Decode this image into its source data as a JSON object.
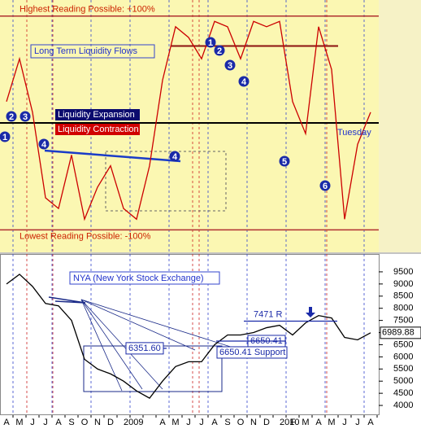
{
  "chart_data": [
    {
      "type": "line",
      "title": "Long Term Liquidity Flows",
      "series": [
        {
          "name": "Long Term Liquidity Flows",
          "color": "#cc0000",
          "values": [
            20,
            60,
            10,
            -70,
            -80,
            -30,
            -90,
            -60,
            -40,
            -80,
            -90,
            -40,
            40,
            90,
            80,
            60,
            95,
            90,
            60,
            95,
            90,
            95,
            20,
            -10,
            90,
            50,
            -90,
            -20,
            10
          ]
        }
      ],
      "ylim": [
        -121,
        115
      ],
      "reference_lines": [
        {
          "value": 100,
          "label": "Highest Reading Possible: +100%"
        },
        {
          "value": -100,
          "label": "Lowest Reading Possible: -100%"
        }
      ],
      "levels": [
        0,
        72
      ],
      "legend": [
        "Liquidity Expansion",
        "Liquidity Contraction"
      ],
      "annotation": "Tuesday",
      "markers": [
        "1",
        "2",
        "3",
        "4",
        "4",
        "1",
        "2",
        "3",
        "4",
        "5",
        "6"
      ]
    },
    {
      "type": "line",
      "title": "NYA (New York Stock Exchange)",
      "categories": [
        "A",
        "M",
        "J",
        "J",
        "A",
        "S",
        "O",
        "N",
        "D",
        "2009",
        null,
        null,
        "A",
        "M",
        "J",
        "J",
        "A",
        "S",
        "O",
        "N",
        "D",
        "2010",
        "F",
        "M",
        "A",
        "M",
        "J",
        "J",
        "A"
      ],
      "series": [
        {
          "name": "NYA",
          "color": "#000000",
          "values": [
            9000,
            9400,
            8900,
            8200,
            8100,
            7500,
            5900,
            5500,
            5300,
            5000,
            4600,
            4300,
            5000,
            5600,
            5800,
            5800,
            6500,
            6900,
            6900,
            7000,
            7200,
            7300,
            6900,
            7400,
            7700,
            7600,
            6800,
            6700,
            6989.88
          ]
        }
      ],
      "ylim": [
        3700,
        9900
      ],
      "yticks": [
        4000,
        4500,
        5000,
        5500,
        6000,
        6500,
        7000,
        7500,
        8000,
        8500,
        9000,
        9500
      ],
      "reference_lines": [
        {
          "value": 7471,
          "label": "7471 R"
        },
        {
          "value": 6351.6,
          "label": "6351.60"
        },
        {
          "value": 6650.41,
          "label": "6650.41"
        },
        {
          "value": 6650.41,
          "label": "6650.41 Support"
        }
      ]
    }
  ]
}
